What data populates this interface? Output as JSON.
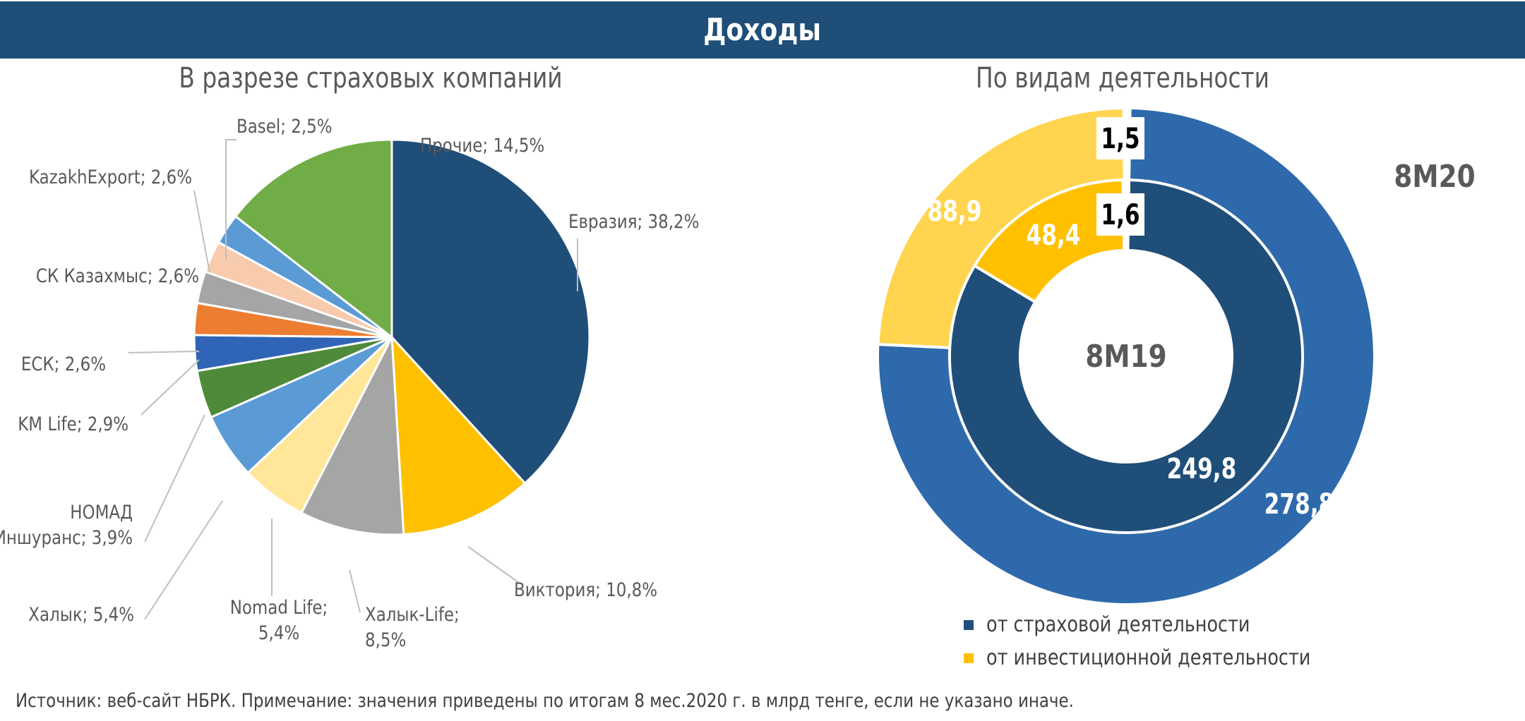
{
  "header": {
    "title": "Доходы"
  },
  "source_note": "Источник: веб-сайт НБРК.  Примечание: значения приведены по итогам 8 мес.2020 г. в млрд тенге, если не указано иначе.",
  "chart_data": [
    {
      "type": "pie",
      "title": "В разрезе страховых компаний",
      "slices": [
        {
          "name": "Евразия",
          "label": "Евразия; 38,2%",
          "value": 38.2,
          "color": "#1f4e79"
        },
        {
          "name": "Виктория",
          "label": "Виктория; 10,8%",
          "value": 10.8,
          "color": "#ffc000"
        },
        {
          "name": "Халык-Life",
          "label": "Халык-Life;\n8,5%",
          "value": 8.5,
          "color": "#a5a5a5"
        },
        {
          "name": "Nomad Life",
          "label": "Nomad Life;\n5,4%",
          "value": 5.4,
          "color": "#ffe699"
        },
        {
          "name": "Халык",
          "label": "Халык; 5,4%",
          "value": 5.4,
          "color": "#5b9bd5"
        },
        {
          "name": "НОМАД Иншуранс",
          "label": "НОМАД\nИншуранс; 3,9%",
          "value": 3.9,
          "color": "#4e8a3a"
        },
        {
          "name": "KM Life",
          "label": "KM Life; 2,9%",
          "value": 2.9,
          "color": "#2f64b6"
        },
        {
          "name": "ЕСК",
          "label": "ЕСК; 2,6%",
          "value": 2.6,
          "color": "#ed7d31"
        },
        {
          "name": "СК Казахмыс",
          "label": "СК Казахмыс; 2,6%",
          "value": 2.6,
          "color": "#a5a5a5"
        },
        {
          "name": "KazakhExport",
          "label": "KazakhExport; 2,6%",
          "value": 2.6,
          "color": "#f8cbad"
        },
        {
          "name": "Basel",
          "label": "Basel; 2,5%",
          "value": 2.5,
          "color": "#5b9bd5"
        },
        {
          "name": "Прочие",
          "label": "Прочие; 14,5%",
          "value": 14.5,
          "color": "#70ad47"
        }
      ]
    },
    {
      "type": "donut",
      "title": "По видам деятельности",
      "legend_position": "bottom",
      "series": [
        {
          "name": "от страховой деятельности",
          "color_outer": "#2e6aab",
          "color_inner": "#1f4e79"
        },
        {
          "name": "от инвестиционной деятельности",
          "color_outer": "#ffd54f",
          "color_inner": "#ffc000"
        },
        {
          "name": "",
          "color_outer": "#ffffff",
          "color_inner": "#ffffff"
        }
      ],
      "rings": [
        {
          "name": "8M20",
          "label": "8M20",
          "position": "outer",
          "values": [
            278.8,
            88.9,
            1.5
          ],
          "value_labels": [
            "278,8",
            "88,9",
            "1,5"
          ]
        },
        {
          "name": "8M19",
          "label": "8M19",
          "position": "inner",
          "values": [
            249.8,
            48.4,
            1.6
          ],
          "value_labels": [
            "249,8",
            "48,4",
            "1,6"
          ]
        }
      ]
    }
  ]
}
